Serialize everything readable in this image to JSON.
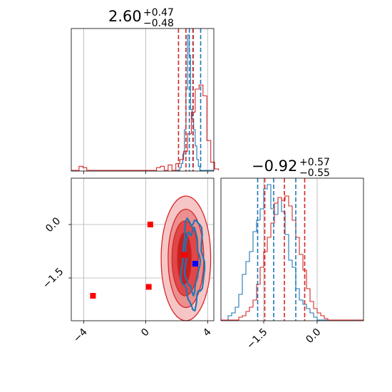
{
  "chart_data": {
    "type": "corner",
    "parameters": [
      {
        "title_value": "2.60",
        "title_plus": "+0.47",
        "title_minus": "−0.48",
        "xlim": [
          -4.8,
          4.4
        ],
        "ticks": [
          -4,
          0,
          4
        ],
        "tick_labels": [
          "−4",
          "0",
          "4"
        ],
        "quantiles_red": [
          2.12,
          2.6,
          3.07
        ],
        "quantiles_blue": [
          2.82,
          3.05,
          3.55
        ]
      },
      {
        "title_value": "−0.92",
        "title_plus": "+0.57",
        "title_minus": "−0.55",
        "xlim": [
          -2.7,
          1.3
        ],
        "ticks": [
          -1.5,
          0.0
        ],
        "tick_labels": [
          "−1.5",
          "0.0"
        ],
        "quantiles_red": [
          -1.47,
          -0.92,
          -0.35
        ],
        "quantiles_blue": [
          -1.67,
          -1.22,
          -0.6
        ]
      }
    ],
    "joint": {
      "ylim": [
        -2.7,
        1.3
      ],
      "yticks": [
        0.0,
        -1.5
      ],
      "ytick_labels": [
        "0.0",
        "−1.5"
      ],
      "red_markers": [
        [
          0.3,
          0.0
        ],
        [
          -3.4,
          -2.0
        ],
        [
          0.2,
          -1.75
        ],
        [
          2.5,
          -0.85
        ]
      ],
      "blue_markers": [
        [
          3.2,
          -1.1
        ]
      ],
      "red_contours": [
        {
          "cx": 2.6,
          "cy": -0.95,
          "rx": 1.6,
          "ry": 1.75,
          "fill": "#f6c6c6"
        },
        {
          "cx": 2.6,
          "cy": -0.95,
          "rx": 1.15,
          "ry": 1.38,
          "fill": "#ec8f8f"
        },
        {
          "cx": 2.55,
          "cy": -0.95,
          "rx": 0.85,
          "ry": 1.05,
          "fill": "#e04848"
        },
        {
          "cx": 2.5,
          "cy": -0.95,
          "rx": 0.45,
          "ry": 0.72,
          "fill": "#c81e1e"
        }
      ],
      "blue_contours": [
        {
          "cx": 3.05,
          "cy": -1.05,
          "rx": 0.7,
          "ry": 1.2
        },
        {
          "cx": 3.0,
          "cy": -1.0,
          "rx": 0.45,
          "ry": 0.85
        }
      ]
    },
    "hist_red_1": {
      "edges_from": -4.8,
      "bin_width": 0.25,
      "counts": [
        0,
        0,
        0.03,
        0.02,
        0,
        0,
        0,
        0,
        0,
        0,
        0,
        0,
        0,
        0,
        0,
        0,
        0,
        0,
        0,
        0,
        0,
        0,
        0.02,
        0.03,
        0,
        0.04,
        0,
        0.05,
        0.08,
        0.14,
        0.27,
        0.43,
        0.6,
        0.63,
        0.55,
        0.22,
        0.06,
        0.01
      ]
    },
    "hist_blue_1": {
      "edges_from": 1.8,
      "bin_width": 0.1,
      "counts": [
        0,
        0,
        0,
        0,
        0.02,
        0.05,
        0.12,
        0.3,
        0.6,
        1.0,
        0.85,
        0.45,
        0.38,
        0.3,
        0.18,
        0.08,
        0.03,
        0,
        0,
        0,
        0,
        0,
        0,
        0,
        0,
        0
      ]
    },
    "hist_red_2": {
      "edges_from": -2.7,
      "bin_width": 0.1,
      "counts": [
        0,
        0,
        0,
        0,
        0,
        0.02,
        0.03,
        0.06,
        0.09,
        0.14,
        0.25,
        0.37,
        0.48,
        0.58,
        0.68,
        0.82,
        0.86,
        0.84,
        0.87,
        0.8,
        0.7,
        0.58,
        0.46,
        0.35,
        0.22,
        0.13,
        0.08,
        0.05,
        0.03,
        0.01,
        0,
        0,
        0,
        0,
        0,
        0,
        0,
        0,
        0,
        0
      ]
    },
    "hist_blue_2": {
      "edges_from": -2.7,
      "bin_width": 0.1,
      "counts": [
        0,
        0,
        0.03,
        0.05,
        0.09,
        0.18,
        0.32,
        0.41,
        0.48,
        0.62,
        0.7,
        0.78,
        0.92,
        0.95,
        0.78,
        0.74,
        0.86,
        0.76,
        0.6,
        0.42,
        0.37,
        0.22,
        0.14,
        0.11,
        0.08,
        0.05,
        0.02,
        0,
        0,
        0,
        0,
        0,
        0,
        0,
        0,
        0,
        0,
        0,
        0,
        0
      ]
    },
    "colors": {
      "red": "#d62728",
      "blue": "#1f77b4",
      "red_marker": "#ff0000",
      "blue_marker": "#0000ff",
      "grid": "#b0b0b0",
      "scatter": "#d9cde2"
    }
  }
}
